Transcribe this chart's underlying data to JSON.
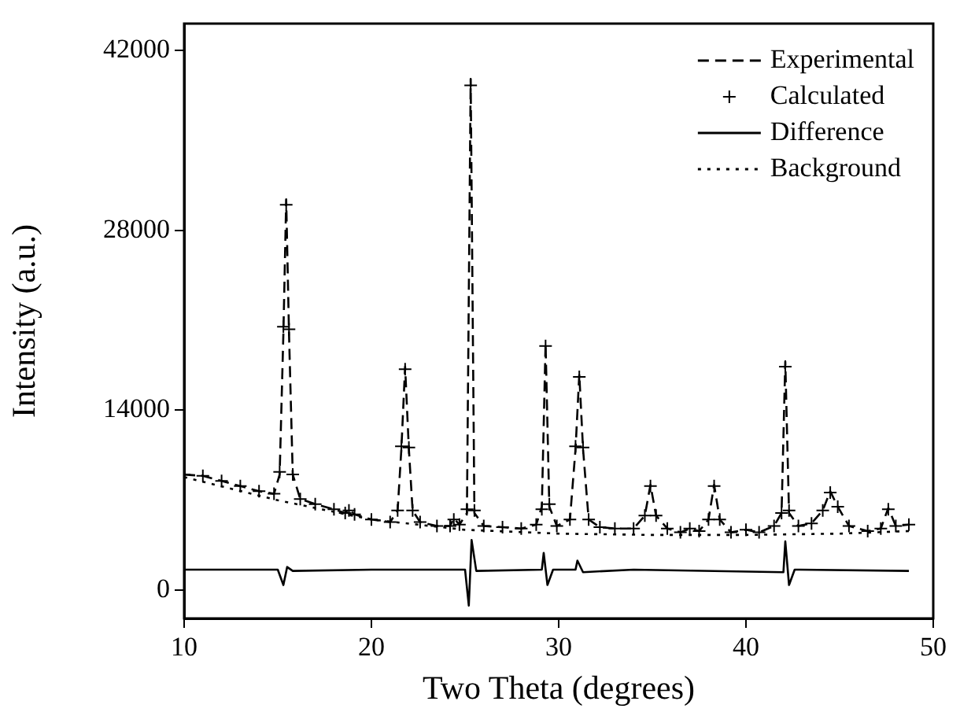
{
  "chart_data": {
    "type": "line",
    "xlabel": "Two Theta (degrees)",
    "ylabel": "Intensity (a.u.)",
    "xlim": [
      10,
      50
    ],
    "xticks": [
      10,
      20,
      30,
      40,
      50
    ],
    "ylim": [
      -2200,
      44100
    ],
    "yticks": [
      0,
      14000,
      28000,
      42000
    ],
    "legend": "top right",
    "grid": false,
    "series": [
      {
        "name": "Experimental",
        "color": "#000000",
        "line_style": "dashed",
        "marker": "none",
        "x": [
          10,
          11,
          12,
          13,
          14,
          14.8,
          15.1,
          15.3,
          15.45,
          15.6,
          15.8,
          16.2,
          17,
          18,
          18.6,
          18.8,
          19.1,
          20,
          21,
          21.4,
          21.6,
          21.8,
          22.0,
          22.2,
          22.6,
          23.5,
          24.2,
          24.4,
          24.7,
          25.1,
          25.3,
          25.5,
          26,
          27,
          28,
          28.8,
          29.1,
          29.3,
          29.5,
          29.9,
          30.6,
          30.9,
          31.1,
          31.3,
          31.6,
          32.2,
          33,
          34,
          34.6,
          34.9,
          35.2,
          35.8,
          36.5,
          37,
          37.5,
          38.0,
          38.3,
          38.6,
          39.2,
          40,
          40.7,
          41.5,
          41.9,
          42.1,
          42.3,
          42.8,
          43.5,
          44.1,
          44.5,
          44.9,
          45.5,
          46.5,
          47.2,
          47.6,
          48,
          48.7
        ],
        "values": [
          9000,
          8900,
          8500,
          8100,
          7700,
          7500,
          9000,
          20000,
          30400,
          20000,
          9000,
          7100,
          6700,
          6300,
          6000,
          6300,
          5900,
          5500,
          5300,
          6200,
          11000,
          17400,
          11000,
          6200,
          5300,
          5000,
          5000,
          5600,
          5100,
          6000,
          39800,
          6000,
          5000,
          4900,
          4800,
          5100,
          6500,
          19200,
          6500,
          5000,
          5500,
          11000,
          16800,
          11000,
          5500,
          4900,
          4800,
          4800,
          5800,
          8200,
          5800,
          4800,
          4500,
          4800,
          4600,
          5500,
          8200,
          5500,
          4500,
          4700,
          4500,
          5000,
          6000,
          17800,
          6000,
          5000,
          5200,
          6200,
          7700,
          6500,
          5000,
          4600,
          4800,
          6400,
          5000,
          5100
        ]
      },
      {
        "name": "Calculated",
        "type": "scatter",
        "color": "#000000",
        "marker": "cross",
        "x": [
          10,
          11,
          12,
          13,
          14,
          14.8,
          15.1,
          15.3,
          15.45,
          15.6,
          15.8,
          16.2,
          17,
          18,
          18.6,
          18.8,
          19.1,
          20,
          21,
          21.4,
          21.6,
          21.8,
          22.0,
          22.2,
          22.6,
          23.5,
          24.2,
          24.4,
          24.7,
          25.1,
          25.3,
          25.5,
          26,
          27,
          28,
          28.8,
          29.1,
          29.3,
          29.5,
          29.9,
          30.6,
          30.9,
          31.1,
          31.3,
          31.6,
          32.2,
          33,
          34,
          34.6,
          34.9,
          35.2,
          35.8,
          36.5,
          37,
          37.5,
          38.0,
          38.3,
          38.6,
          39.2,
          40,
          40.7,
          41.5,
          41.9,
          42.1,
          42.3,
          42.8,
          43.5,
          44.1,
          44.5,
          44.9,
          45.5,
          46.5,
          47.2,
          47.6,
          48,
          48.7
        ],
        "values": [
          9000,
          8900,
          8500,
          8100,
          7700,
          7500,
          9200,
          20500,
          30000,
          20300,
          9000,
          7100,
          6700,
          6300,
          6000,
          6200,
          5900,
          5500,
          5300,
          6200,
          11200,
          17200,
          11100,
          6200,
          5300,
          5000,
          5000,
          5500,
          5100,
          6300,
          39300,
          6200,
          5000,
          4900,
          4800,
          5100,
          6300,
          19000,
          6700,
          5000,
          5500,
          11200,
          16600,
          11100,
          5500,
          4900,
          4800,
          4800,
          5800,
          8100,
          5800,
          4800,
          4500,
          4800,
          4600,
          5500,
          8100,
          5500,
          4500,
          4700,
          4500,
          5000,
          6000,
          17400,
          6200,
          5000,
          5200,
          6200,
          7600,
          6500,
          5000,
          4600,
          4800,
          6300,
          5000,
          5100
        ]
      },
      {
        "name": "Difference",
        "color": "#000000",
        "line_style": "solid",
        "marker": "none",
        "x": [
          10,
          15,
          15.3,
          15.5,
          15.8,
          20,
          25,
          25.2,
          25.35,
          25.6,
          29.1,
          29.2,
          29.4,
          29.7,
          30.9,
          31.0,
          31.3,
          34,
          42,
          42.1,
          42.3,
          42.6,
          48.7
        ],
        "values": [
          1600,
          1600,
          400,
          1800,
          1500,
          1600,
          1600,
          -1200,
          3900,
          1500,
          1600,
          2900,
          400,
          1600,
          1600,
          2300,
          1400,
          1600,
          1400,
          3800,
          400,
          1600,
          1500
        ]
      },
      {
        "name": "Background",
        "color": "#000000",
        "line_style": "dotted",
        "marker": "none",
        "x": [
          10,
          15,
          20,
          25,
          30,
          35,
          40,
          45,
          48.7
        ],
        "values": [
          8800,
          7000,
          5500,
          4700,
          4400,
          4300,
          4300,
          4400,
          4600
        ]
      }
    ]
  }
}
